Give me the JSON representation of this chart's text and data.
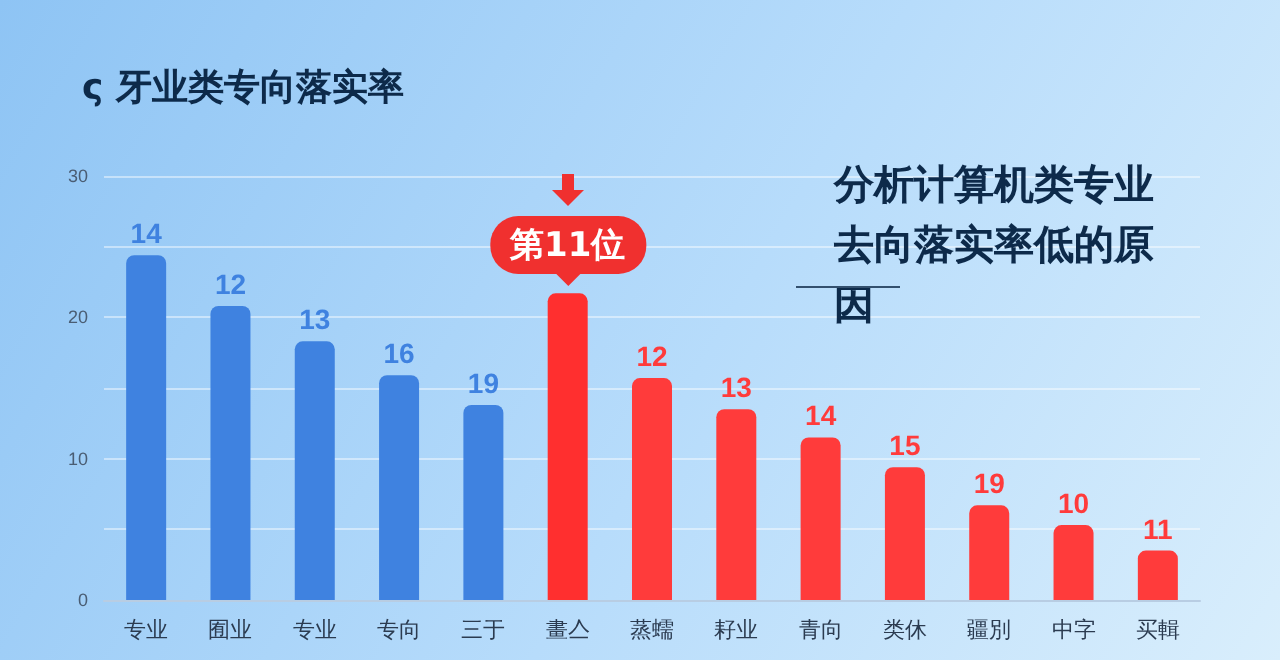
{
  "chart_data": {
    "type": "bar",
    "title": "ς 牙业类专向落实率",
    "subtitle": "分析计算机类专业去向落实率低的原因",
    "categories": [
      "专业",
      "囿业",
      "专业",
      "专向",
      "三于",
      "畫亼",
      "蒸蠕",
      "耔业",
      "青向",
      "类休",
      "疆別",
      "中字",
      "买輯"
    ],
    "values": [
      24.4,
      20.8,
      18.3,
      15.9,
      13.8,
      21.7,
      15.7,
      13.5,
      11.5,
      9.4,
      6.7,
      5.3,
      3.5
    ],
    "colors": [
      "#3f82e0",
      "#3f82e0",
      "#3f82e0",
      "#3f82e0",
      "#3f82e0",
      "#ff2f2f",
      "#ff3b3b",
      "#ff3b3b",
      "#ff3b3b",
      "#ff3b3b",
      "#ff3b3b",
      "#ff3b3b",
      "#ff3b3b"
    ],
    "annotations": [
      {
        "text": "第11位",
        "x": "畫亼",
        "y": 21.7
      },
      {
        "text": "14",
        "x": "专业",
        "y": 24.4
      },
      {
        "text": "12",
        "x": "囿业",
        "y": 20.8
      },
      {
        "text": "13",
        "y": 18.3
      },
      {
        "text": "16",
        "x": "专向",
        "y": 15.9
      },
      {
        "text": "19",
        "x": "三于",
        "y": 13.8
      },
      {
        "text": "12",
        "x": "蒸蠕",
        "y": 15.7
      },
      {
        "text": "13",
        "x": "耔业",
        "y": 13.5
      },
      {
        "text": "14",
        "x": "青向",
        "y": 11.5
      },
      {
        "text": "15",
        "x": "类休",
        "y": 9.4
      },
      {
        "text": "19",
        "x": "疆別",
        "y": 6.7
      },
      {
        "text": "10",
        "x": "中字",
        "y": 5.3
      },
      {
        "text": "11",
        "x": "买輯",
        "y": 3.5
      }
    ],
    "ylim": [
      0,
      30
    ],
    "yticks": [
      0,
      {
        "value": 5,
        "label": null
      },
      10,
      {
        "value": 15,
        "label": null
      },
      20,
      {
        "value": 25,
        "label": null
      },
      30
    ],
    "grid": "y"
  }
}
